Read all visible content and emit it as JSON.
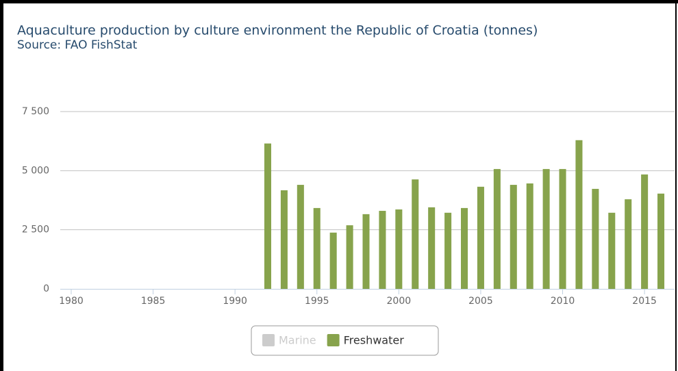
{
  "chart_data": {
    "type": "bar",
    "title": "Aquaculture production by culture environment the Republic of Croatia (tonnes)",
    "subtitle": "Source: FAO FishStat",
    "x": [
      1980,
      1981,
      1982,
      1983,
      1984,
      1985,
      1986,
      1987,
      1988,
      1989,
      1990,
      1991,
      1992,
      1993,
      1994,
      1995,
      1996,
      1997,
      1998,
      1999,
      2000,
      2001,
      2002,
      2003,
      2004,
      2005,
      2006,
      2007,
      2008,
      2009,
      2010,
      2011,
      2012,
      2013,
      2014,
      2015,
      2016
    ],
    "series": [
      {
        "name": "Marine",
        "color": "#cccccc",
        "visible": false,
        "values": [
          null,
          null,
          null,
          null,
          null,
          null,
          null,
          null,
          null,
          null,
          null,
          null,
          null,
          null,
          null,
          null,
          null,
          null,
          null,
          null,
          null,
          null,
          null,
          null,
          null,
          null,
          null,
          null,
          null,
          null,
          null,
          null,
          null,
          null,
          null,
          null,
          null
        ]
      },
      {
        "name": "Freshwater",
        "color": "#87a34c",
        "visible": true,
        "values": [
          null,
          null,
          null,
          null,
          null,
          null,
          null,
          null,
          null,
          null,
          null,
          null,
          6150,
          4170,
          4400,
          3420,
          2380,
          2690,
          3160,
          3300,
          3360,
          4630,
          3450,
          3220,
          3420,
          4320,
          5070,
          4400,
          4460,
          5070,
          5070,
          6290,
          4230,
          3220,
          3790,
          4840,
          4030
        ]
      }
    ],
    "xlim": [
      1979.5,
      2016.5
    ],
    "xticks": [
      1980,
      1985,
      1990,
      1995,
      2000,
      2005,
      2010,
      2015
    ],
    "ylim": [
      0,
      7500
    ],
    "yticks": [
      {
        "value": 0,
        "label": "0"
      },
      {
        "value": 2500,
        "label": "2 500"
      },
      {
        "value": 5000,
        "label": "5 000"
      },
      {
        "value": 7500,
        "label": "7 500"
      }
    ],
    "grid": true
  }
}
